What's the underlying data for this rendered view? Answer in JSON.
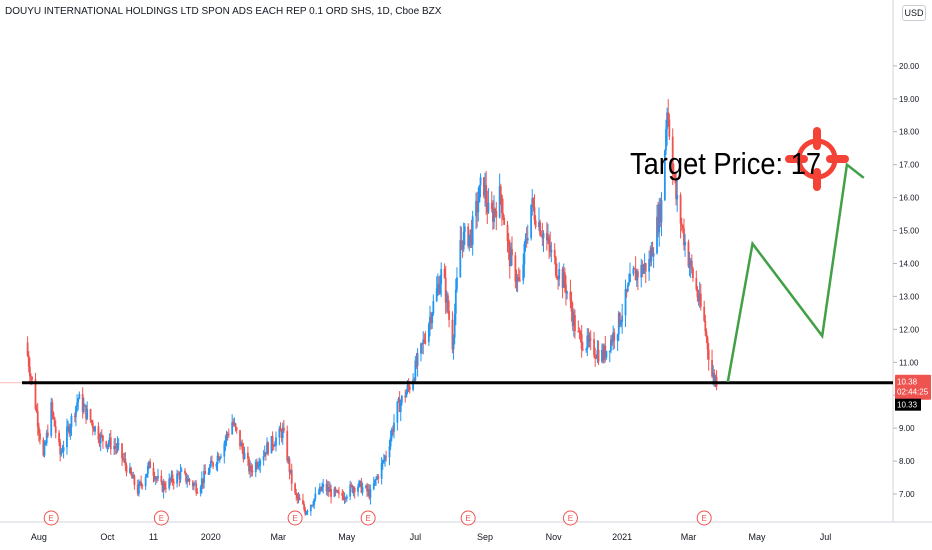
{
  "header": {
    "title": "DOUYU INTERNATIONAL HOLDINGS LTD SPON ADS EACH REP 0.1 ORD SHS, 1D, Cboe BZX",
    "currency": "USD"
  },
  "annotations": {
    "target_text": "Target Price: 17",
    "support_level": 10.38
  },
  "price_tags": {
    "last_price": "10.38",
    "countdown": "02:44:25",
    "low_price": "10.33"
  },
  "earnings_marker": "E",
  "colors": {
    "up": "#26a69a",
    "up_candle": "#2196f3",
    "down": "#ef5350",
    "support_line": "#000000",
    "projection": "#43a047",
    "target_icon": "#f44336"
  },
  "chart_data": {
    "type": "candlestick",
    "title": "DOUYU INTERNATIONAL HOLDINGS LTD SPON ADS EACH REP 0.1 ORD SHS, 1D, Cboe BZX",
    "ylim": [
      6.15,
      22.0
    ],
    "y_ticks": [
      7,
      8,
      9,
      10,
      11,
      12,
      13,
      14,
      15,
      16,
      17,
      18,
      19,
      20
    ],
    "y_tick_labels": [
      "7.00",
      "8.00",
      "9.00",
      "10.00",
      "11.00",
      "12.00",
      "13.00",
      "14.00",
      "15.00",
      "16.00",
      "17.00",
      "18.00",
      "19.00",
      "20.00"
    ],
    "x_ticks": [
      "Aug",
      "Oct",
      "11",
      "2020",
      "Mar",
      "May",
      "Jul",
      "Sep",
      "Nov",
      "2021",
      "Mar",
      "May",
      "Jul"
    ],
    "x_tick_dates": [
      "2019-08-01",
      "2019-10-01",
      "2019-11-11",
      "2020-01-01",
      "2020-03-01",
      "2020-05-01",
      "2020-07-01",
      "2020-09-01",
      "2020-11-01",
      "2021-01-01",
      "2021-03-01",
      "2021-05-01",
      "2021-07-01"
    ],
    "x_range": [
      "2019-07-17",
      "2021-08-30"
    ],
    "price_path": [
      [
        "2019-07-20",
        11.6
      ],
      [
        "2019-07-26",
        10.4
      ],
      [
        "2019-08-05",
        8.1
      ],
      [
        "2019-08-12",
        9.6
      ],
      [
        "2019-08-20",
        8.2
      ],
      [
        "2019-09-05",
        9.9
      ],
      [
        "2019-09-25",
        8.7
      ],
      [
        "2019-10-10",
        8.4
      ],
      [
        "2019-10-28",
        7.1
      ],
      [
        "2019-11-08",
        7.9
      ],
      [
        "2019-11-18",
        7.2
      ],
      [
        "2019-12-05",
        7.6
      ],
      [
        "2019-12-20",
        7.2
      ],
      [
        "2020-01-10",
        8.3
      ],
      [
        "2020-01-20",
        9.2
      ],
      [
        "2020-02-05",
        7.7
      ],
      [
        "2020-02-20",
        8.4
      ],
      [
        "2020-03-05",
        8.9
      ],
      [
        "2020-03-15",
        7.0
      ],
      [
        "2020-03-25",
        6.5
      ],
      [
        "2020-04-10",
        7.2
      ],
      [
        "2020-04-25",
        6.9
      ],
      [
        "2020-05-10",
        7.3
      ],
      [
        "2020-05-22",
        7.0
      ],
      [
        "2020-06-05",
        8.2
      ],
      [
        "2020-06-15",
        9.6
      ],
      [
        "2020-06-26",
        10.3
      ],
      [
        "2020-07-05",
        11.2
      ],
      [
        "2020-07-15",
        12.5
      ],
      [
        "2020-07-25",
        13.8
      ],
      [
        "2020-08-03",
        11.6
      ],
      [
        "2020-08-10",
        14.7
      ],
      [
        "2020-08-20",
        14.9
      ],
      [
        "2020-08-30",
        16.6
      ],
      [
        "2020-09-05",
        15.3
      ],
      [
        "2020-09-15",
        16.1
      ],
      [
        "2020-09-22",
        14.3
      ],
      [
        "2020-10-02",
        13.3
      ],
      [
        "2020-10-12",
        15.8
      ],
      [
        "2020-10-22",
        15.0
      ],
      [
        "2020-11-02",
        14.0
      ],
      [
        "2020-11-12",
        13.3
      ],
      [
        "2020-11-22",
        11.8
      ],
      [
        "2020-12-02",
        11.5
      ],
      [
        "2020-12-15",
        11.2
      ],
      [
        "2020-12-28",
        12.1
      ],
      [
        "2021-01-10",
        13.6
      ],
      [
        "2021-01-25",
        14.0
      ],
      [
        "2021-02-05",
        15.8
      ],
      [
        "2021-02-10",
        18.8
      ],
      [
        "2021-02-18",
        16.0
      ],
      [
        "2021-02-28",
        14.3
      ],
      [
        "2021-03-08",
        13.2
      ],
      [
        "2021-03-15",
        12.2
      ],
      [
        "2021-03-22",
        10.6
      ],
      [
        "2021-03-29",
        10.38
      ]
    ],
    "projection_path": [
      [
        "2021-04-05",
        10.4
      ],
      [
        "2021-04-27",
        14.6
      ],
      [
        "2021-06-28",
        11.8
      ],
      [
        "2021-07-20",
        17.0
      ],
      [
        "2021-08-04",
        16.6
      ]
    ],
    "earnings_dates": [
      "2019-08-12",
      "2019-11-18",
      "2020-03-16",
      "2020-05-20",
      "2020-08-17",
      "2020-11-16",
      "2021-03-15"
    ]
  }
}
